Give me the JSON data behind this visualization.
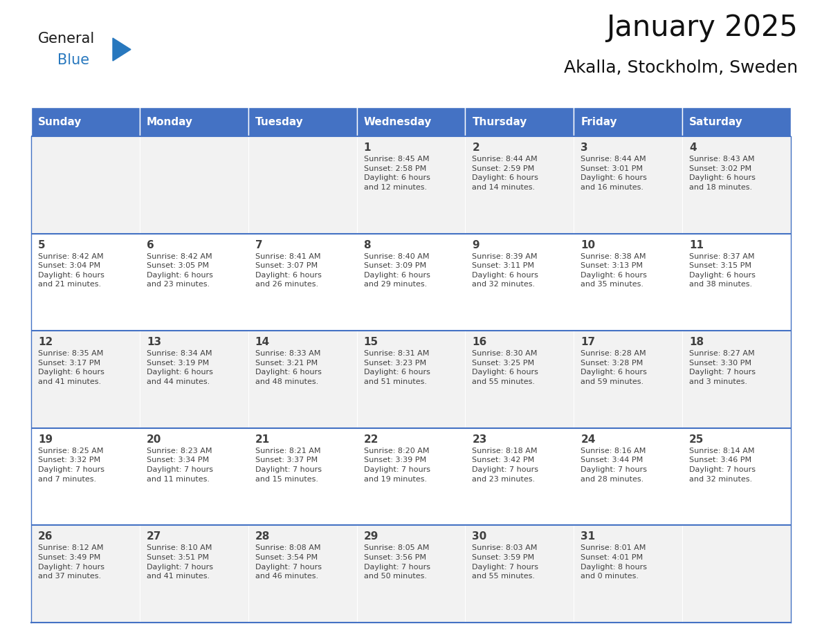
{
  "title": "January 2025",
  "subtitle": "Akalla, Stockholm, Sweden",
  "header_color": "#4472C4",
  "header_text_color": "#FFFFFF",
  "days_of_week": [
    "Sunday",
    "Monday",
    "Tuesday",
    "Wednesday",
    "Thursday",
    "Friday",
    "Saturday"
  ],
  "row_bg_odd": "#F2F2F2",
  "row_bg_even": "#FFFFFF",
  "cell_border_color": "#4472C4",
  "text_color": "#404040",
  "title_color": "#111111",
  "calendar_data": [
    [
      {
        "day": "",
        "info": ""
      },
      {
        "day": "",
        "info": ""
      },
      {
        "day": "",
        "info": ""
      },
      {
        "day": "1",
        "info": "Sunrise: 8:45 AM\nSunset: 2:58 PM\nDaylight: 6 hours\nand 12 minutes."
      },
      {
        "day": "2",
        "info": "Sunrise: 8:44 AM\nSunset: 2:59 PM\nDaylight: 6 hours\nand 14 minutes."
      },
      {
        "day": "3",
        "info": "Sunrise: 8:44 AM\nSunset: 3:01 PM\nDaylight: 6 hours\nand 16 minutes."
      },
      {
        "day": "4",
        "info": "Sunrise: 8:43 AM\nSunset: 3:02 PM\nDaylight: 6 hours\nand 18 minutes."
      }
    ],
    [
      {
        "day": "5",
        "info": "Sunrise: 8:42 AM\nSunset: 3:04 PM\nDaylight: 6 hours\nand 21 minutes."
      },
      {
        "day": "6",
        "info": "Sunrise: 8:42 AM\nSunset: 3:05 PM\nDaylight: 6 hours\nand 23 minutes."
      },
      {
        "day": "7",
        "info": "Sunrise: 8:41 AM\nSunset: 3:07 PM\nDaylight: 6 hours\nand 26 minutes."
      },
      {
        "day": "8",
        "info": "Sunrise: 8:40 AM\nSunset: 3:09 PM\nDaylight: 6 hours\nand 29 minutes."
      },
      {
        "day": "9",
        "info": "Sunrise: 8:39 AM\nSunset: 3:11 PM\nDaylight: 6 hours\nand 32 minutes."
      },
      {
        "day": "10",
        "info": "Sunrise: 8:38 AM\nSunset: 3:13 PM\nDaylight: 6 hours\nand 35 minutes."
      },
      {
        "day": "11",
        "info": "Sunrise: 8:37 AM\nSunset: 3:15 PM\nDaylight: 6 hours\nand 38 minutes."
      }
    ],
    [
      {
        "day": "12",
        "info": "Sunrise: 8:35 AM\nSunset: 3:17 PM\nDaylight: 6 hours\nand 41 minutes."
      },
      {
        "day": "13",
        "info": "Sunrise: 8:34 AM\nSunset: 3:19 PM\nDaylight: 6 hours\nand 44 minutes."
      },
      {
        "day": "14",
        "info": "Sunrise: 8:33 AM\nSunset: 3:21 PM\nDaylight: 6 hours\nand 48 minutes."
      },
      {
        "day": "15",
        "info": "Sunrise: 8:31 AM\nSunset: 3:23 PM\nDaylight: 6 hours\nand 51 minutes."
      },
      {
        "day": "16",
        "info": "Sunrise: 8:30 AM\nSunset: 3:25 PM\nDaylight: 6 hours\nand 55 minutes."
      },
      {
        "day": "17",
        "info": "Sunrise: 8:28 AM\nSunset: 3:28 PM\nDaylight: 6 hours\nand 59 minutes."
      },
      {
        "day": "18",
        "info": "Sunrise: 8:27 AM\nSunset: 3:30 PM\nDaylight: 7 hours\nand 3 minutes."
      }
    ],
    [
      {
        "day": "19",
        "info": "Sunrise: 8:25 AM\nSunset: 3:32 PM\nDaylight: 7 hours\nand 7 minutes."
      },
      {
        "day": "20",
        "info": "Sunrise: 8:23 AM\nSunset: 3:34 PM\nDaylight: 7 hours\nand 11 minutes."
      },
      {
        "day": "21",
        "info": "Sunrise: 8:21 AM\nSunset: 3:37 PM\nDaylight: 7 hours\nand 15 minutes."
      },
      {
        "day": "22",
        "info": "Sunrise: 8:20 AM\nSunset: 3:39 PM\nDaylight: 7 hours\nand 19 minutes."
      },
      {
        "day": "23",
        "info": "Sunrise: 8:18 AM\nSunset: 3:42 PM\nDaylight: 7 hours\nand 23 minutes."
      },
      {
        "day": "24",
        "info": "Sunrise: 8:16 AM\nSunset: 3:44 PM\nDaylight: 7 hours\nand 28 minutes."
      },
      {
        "day": "25",
        "info": "Sunrise: 8:14 AM\nSunset: 3:46 PM\nDaylight: 7 hours\nand 32 minutes."
      }
    ],
    [
      {
        "day": "26",
        "info": "Sunrise: 8:12 AM\nSunset: 3:49 PM\nDaylight: 7 hours\nand 37 minutes."
      },
      {
        "day": "27",
        "info": "Sunrise: 8:10 AM\nSunset: 3:51 PM\nDaylight: 7 hours\nand 41 minutes."
      },
      {
        "day": "28",
        "info": "Sunrise: 8:08 AM\nSunset: 3:54 PM\nDaylight: 7 hours\nand 46 minutes."
      },
      {
        "day": "29",
        "info": "Sunrise: 8:05 AM\nSunset: 3:56 PM\nDaylight: 7 hours\nand 50 minutes."
      },
      {
        "day": "30",
        "info": "Sunrise: 8:03 AM\nSunset: 3:59 PM\nDaylight: 7 hours\nand 55 minutes."
      },
      {
        "day": "31",
        "info": "Sunrise: 8:01 AM\nSunset: 4:01 PM\nDaylight: 8 hours\nand 0 minutes."
      },
      {
        "day": "",
        "info": ""
      }
    ]
  ],
  "logo_text_general": "General",
  "logo_text_blue": "Blue",
  "logo_color_general": "#1a1a1a",
  "logo_color_blue": "#2878BE",
  "logo_triangle_color": "#2878BE",
  "fig_width": 11.88,
  "fig_height": 9.18,
  "dpi": 100
}
